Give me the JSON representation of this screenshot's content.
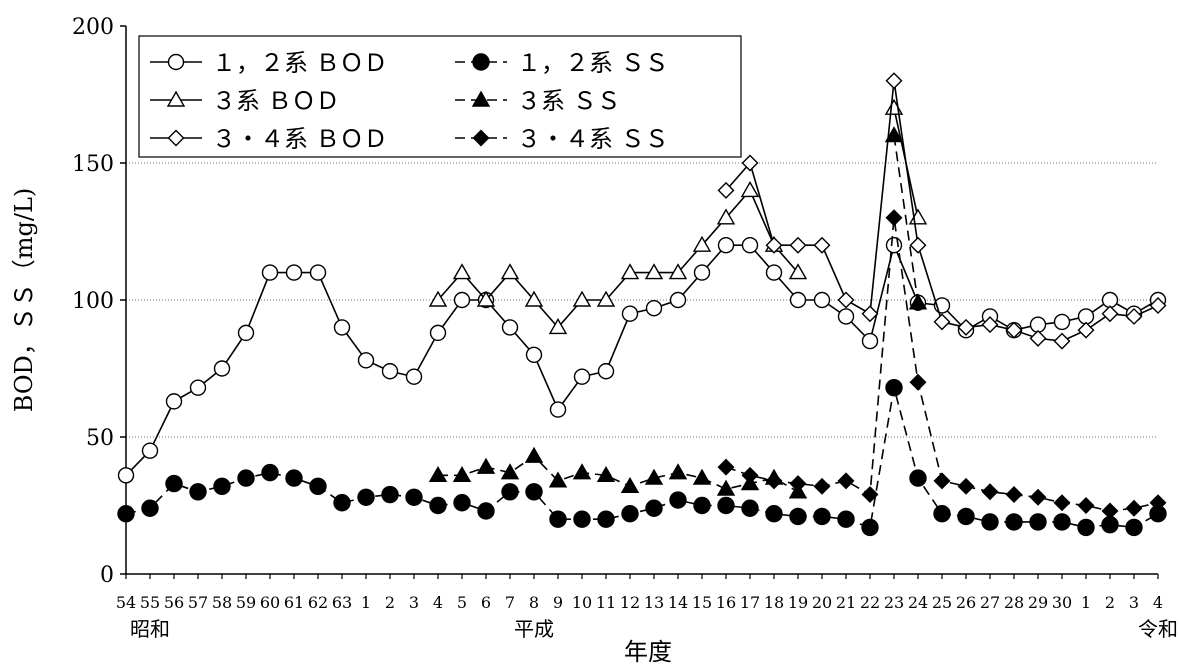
{
  "chart_data": {
    "type": "line",
    "xlabel": "年度",
    "ylabel": "BOD，ＳＳ（mg/L)",
    "ylim": [
      0,
      200
    ],
    "yticks": [
      0,
      50,
      100,
      150,
      200
    ],
    "grid": "horizontal dotted lines at 50, 100, 150",
    "legend_position": "top-left",
    "x": [
      "54",
      "55",
      "56",
      "57",
      "58",
      "59",
      "60",
      "61",
      "62",
      "63",
      "1",
      "2",
      "3",
      "4",
      "5",
      "6",
      "7",
      "8",
      "9",
      "10",
      "11",
      "12",
      "13",
      "14",
      "15",
      "16",
      "17",
      "18",
      "19",
      "20",
      "21",
      "22",
      "23",
      "24",
      "25",
      "26",
      "27",
      "28",
      "29",
      "30",
      "1",
      "2",
      "3",
      "4"
    ],
    "era_labels": [
      {
        "text": "昭和",
        "at": 1
      },
      {
        "text": "平成",
        "at": 17
      },
      {
        "text": "令和",
        "at": 43
      }
    ],
    "series": [
      {
        "name": "１，２系 ＢＯＤ",
        "marker": "circle-open",
        "dash": "solid",
        "values": [
          36,
          45,
          63,
          68,
          75,
          88,
          110,
          110,
          110,
          90,
          78,
          74,
          72,
          88,
          100,
          100,
          90,
          80,
          60,
          72,
          74,
          95,
          97,
          100,
          110,
          120,
          120,
          110,
          100,
          100,
          94,
          85,
          120,
          99,
          98,
          89,
          94,
          89,
          91,
          92,
          94,
          100,
          95,
          100
        ]
      },
      {
        "name": "１，２系 ＳＳ",
        "marker": "circle-filled",
        "dash": "dashed",
        "values": [
          22,
          24,
          33,
          30,
          32,
          35,
          37,
          35,
          32,
          26,
          28,
          29,
          28,
          25,
          26,
          23,
          30,
          30,
          20,
          20,
          20,
          22,
          24,
          27,
          25,
          25,
          24,
          22,
          21,
          21,
          20,
          17,
          68,
          35,
          22,
          21,
          19,
          19,
          19,
          19,
          17,
          18,
          17,
          22
        ]
      },
      {
        "name": "３系 ＢＯＤ",
        "marker": "triangle-open",
        "dash": "solid",
        "values": [
          null,
          null,
          null,
          null,
          null,
          null,
          null,
          null,
          null,
          null,
          null,
          null,
          null,
          100,
          110,
          100,
          110,
          100,
          90,
          100,
          100,
          110,
          110,
          110,
          120,
          130,
          140,
          120,
          110,
          null,
          null,
          null,
          170,
          130,
          null,
          null,
          null,
          null,
          null,
          null,
          null,
          null,
          null,
          null
        ]
      },
      {
        "name": "３系 ＳＳ",
        "marker": "triangle-filled",
        "dash": "dashed",
        "values": [
          null,
          null,
          null,
          null,
          null,
          null,
          null,
          null,
          null,
          null,
          null,
          null,
          null,
          36,
          36,
          39,
          37,
          43,
          34,
          37,
          36,
          32,
          35,
          37,
          35,
          31,
          33,
          35,
          30,
          null,
          null,
          null,
          160,
          99,
          null,
          null,
          null,
          null,
          null,
          null,
          null,
          null,
          null,
          null
        ]
      },
      {
        "name": "３・４系 ＢＯＤ",
        "marker": "diamond-open",
        "dash": "solid",
        "values": [
          null,
          null,
          null,
          null,
          null,
          null,
          null,
          null,
          null,
          null,
          null,
          null,
          null,
          null,
          null,
          null,
          null,
          null,
          null,
          null,
          null,
          null,
          null,
          null,
          null,
          140,
          150,
          120,
          120,
          120,
          100,
          95,
          180,
          120,
          92,
          90,
          91,
          89,
          86,
          85,
          89,
          95,
          94,
          98
        ]
      },
      {
        "name": "３・４系 ＳＳ",
        "marker": "diamond-filled",
        "dash": "dashed",
        "values": [
          null,
          null,
          null,
          null,
          null,
          null,
          null,
          null,
          null,
          null,
          null,
          null,
          null,
          null,
          null,
          null,
          null,
          null,
          null,
          null,
          null,
          null,
          null,
          null,
          null,
          39,
          36,
          34,
          33,
          32,
          34,
          29,
          130,
          70,
          34,
          32,
          30,
          29,
          28,
          26,
          25,
          23,
          24,
          26
        ]
      }
    ]
  }
}
